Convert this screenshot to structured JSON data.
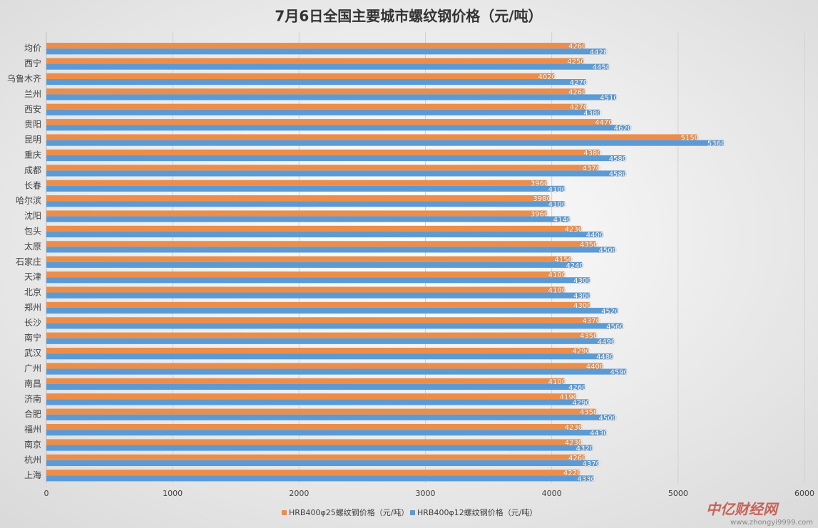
{
  "chart_data": {
    "type": "bar",
    "orientation": "horizontal",
    "title": "7月6日全国主要城市螺纹钢价格（元/吨）",
    "categories": [
      "均价",
      "西宁",
      "乌鲁木齐",
      "兰州",
      "西安",
      "贵阳",
      "昆明",
      "重庆",
      "成都",
      "长春",
      "哈尔滨",
      "沈阳",
      "包头",
      "太原",
      "石家庄",
      "天津",
      "北京",
      "郑州",
      "长沙",
      "南宁",
      "武汉",
      "广州",
      "南昌",
      "济南",
      "合肥",
      "福州",
      "南京",
      "杭州",
      "上海"
    ],
    "series": [
      {
        "name": "HRB400φ25螺纹钢价格（元/吨）",
        "color": "#ed8d4a",
        "values": [
          4260,
          4250,
          4020,
          4260,
          4270,
          4470,
          5150,
          4380,
          4370,
          3960,
          3980,
          3960,
          4230,
          4350,
          4150,
          4100,
          4100,
          4300,
          4370,
          4350,
          4290,
          4400,
          4100,
          4190,
          4350,
          4230,
          4230,
          4260,
          4220
        ]
      },
      {
        "name": "HRB400φ12螺纹钢价格（元/吨）",
        "color": "#5b9bd5",
        "values": [
          4428,
          4450,
          4270,
          4510,
          4380,
          4620,
          5360,
          4580,
          4580,
          4100,
          4100,
          4140,
          4400,
          4500,
          4240,
          4300,
          4300,
          4520,
          4560,
          4490,
          4480,
          4590,
          4260,
          4290,
          4500,
          4430,
          4320,
          4370,
          4330
        ]
      }
    ],
    "xlim": [
      0,
      6000
    ],
    "xticks": [
      0,
      1000,
      2000,
      3000,
      4000,
      5000,
      6000
    ],
    "grid": true,
    "legend": "bottom",
    "watermark": {
      "logo": "中亿财经网",
      "url": "www.zhongyi9999.com"
    }
  }
}
